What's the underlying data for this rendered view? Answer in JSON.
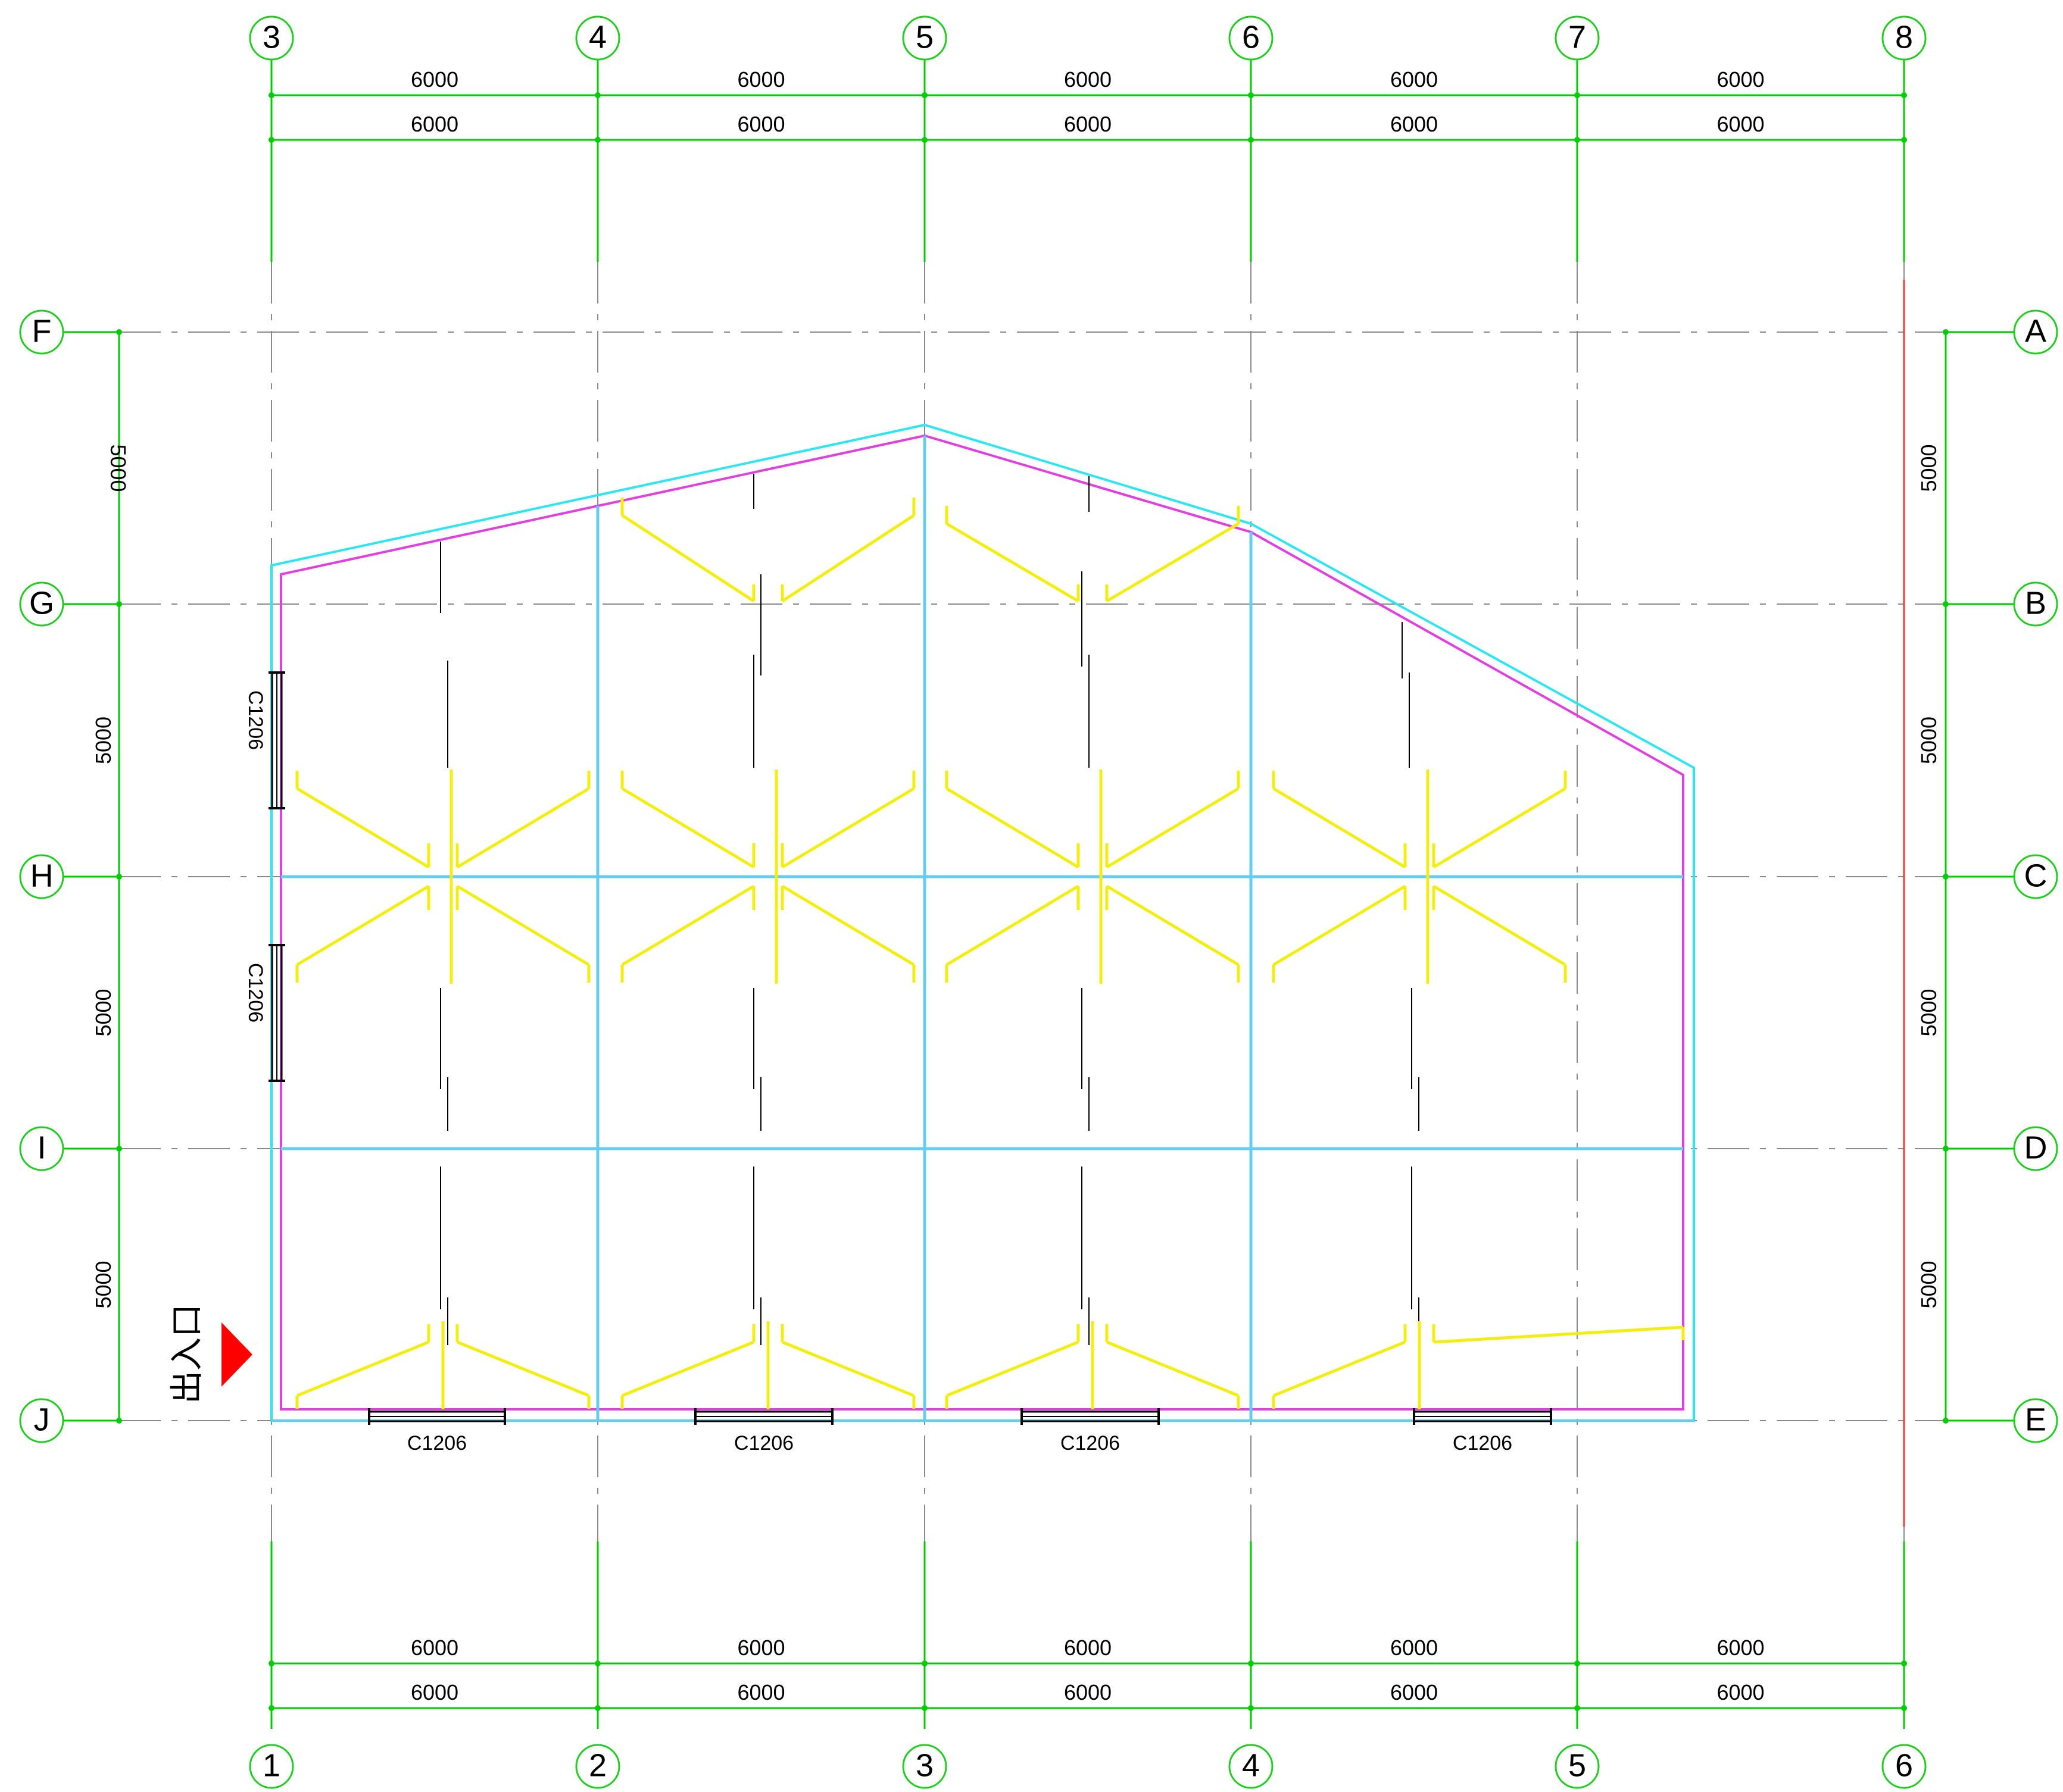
{
  "top_axes_labels": [
    "3",
    "4",
    "5",
    "6",
    "7",
    "8"
  ],
  "bottom_axes_labels": [
    "1",
    "2",
    "3",
    "4",
    "5",
    "6"
  ],
  "left_axes_labels": [
    "F",
    "G",
    "H",
    "I",
    "J"
  ],
  "right_axes_labels": [
    "A",
    "B",
    "C",
    "D",
    "E"
  ],
  "dim_top_row1": [
    "6000",
    "6000",
    "6000",
    "6000",
    "6000"
  ],
  "dim_top_row2": [
    "6000",
    "6000",
    "6000",
    "6000",
    "6000"
  ],
  "dim_bottom_row1": [
    "6000",
    "6000",
    "6000",
    "6000",
    "6000"
  ],
  "dim_bottom_row2": [
    "6000",
    "6000",
    "6000",
    "6000",
    "6000"
  ],
  "dim_left": [
    "5000",
    "5000",
    "5000",
    "5000"
  ],
  "dim_right": [
    "5000",
    "5000",
    "5000",
    "5000"
  ],
  "windows_bottom": [
    "C1206",
    "C1206",
    "C1206",
    "C1206"
  ],
  "windows_left": [
    "C1206",
    "C1206"
  ],
  "entrance_label": "出入口",
  "colors": {
    "axis_bubble": "#22cc22",
    "dimension": "#00cc00",
    "grid_centerline": "#8a8a8a",
    "outline_outer": "#2fe6f0",
    "outline_inner": "#e040e0",
    "beam": "#66ccf0",
    "light_fixture": "#f2ee10",
    "entrance_arrow": "#ff0000",
    "boundary_line": "#ff3333"
  }
}
